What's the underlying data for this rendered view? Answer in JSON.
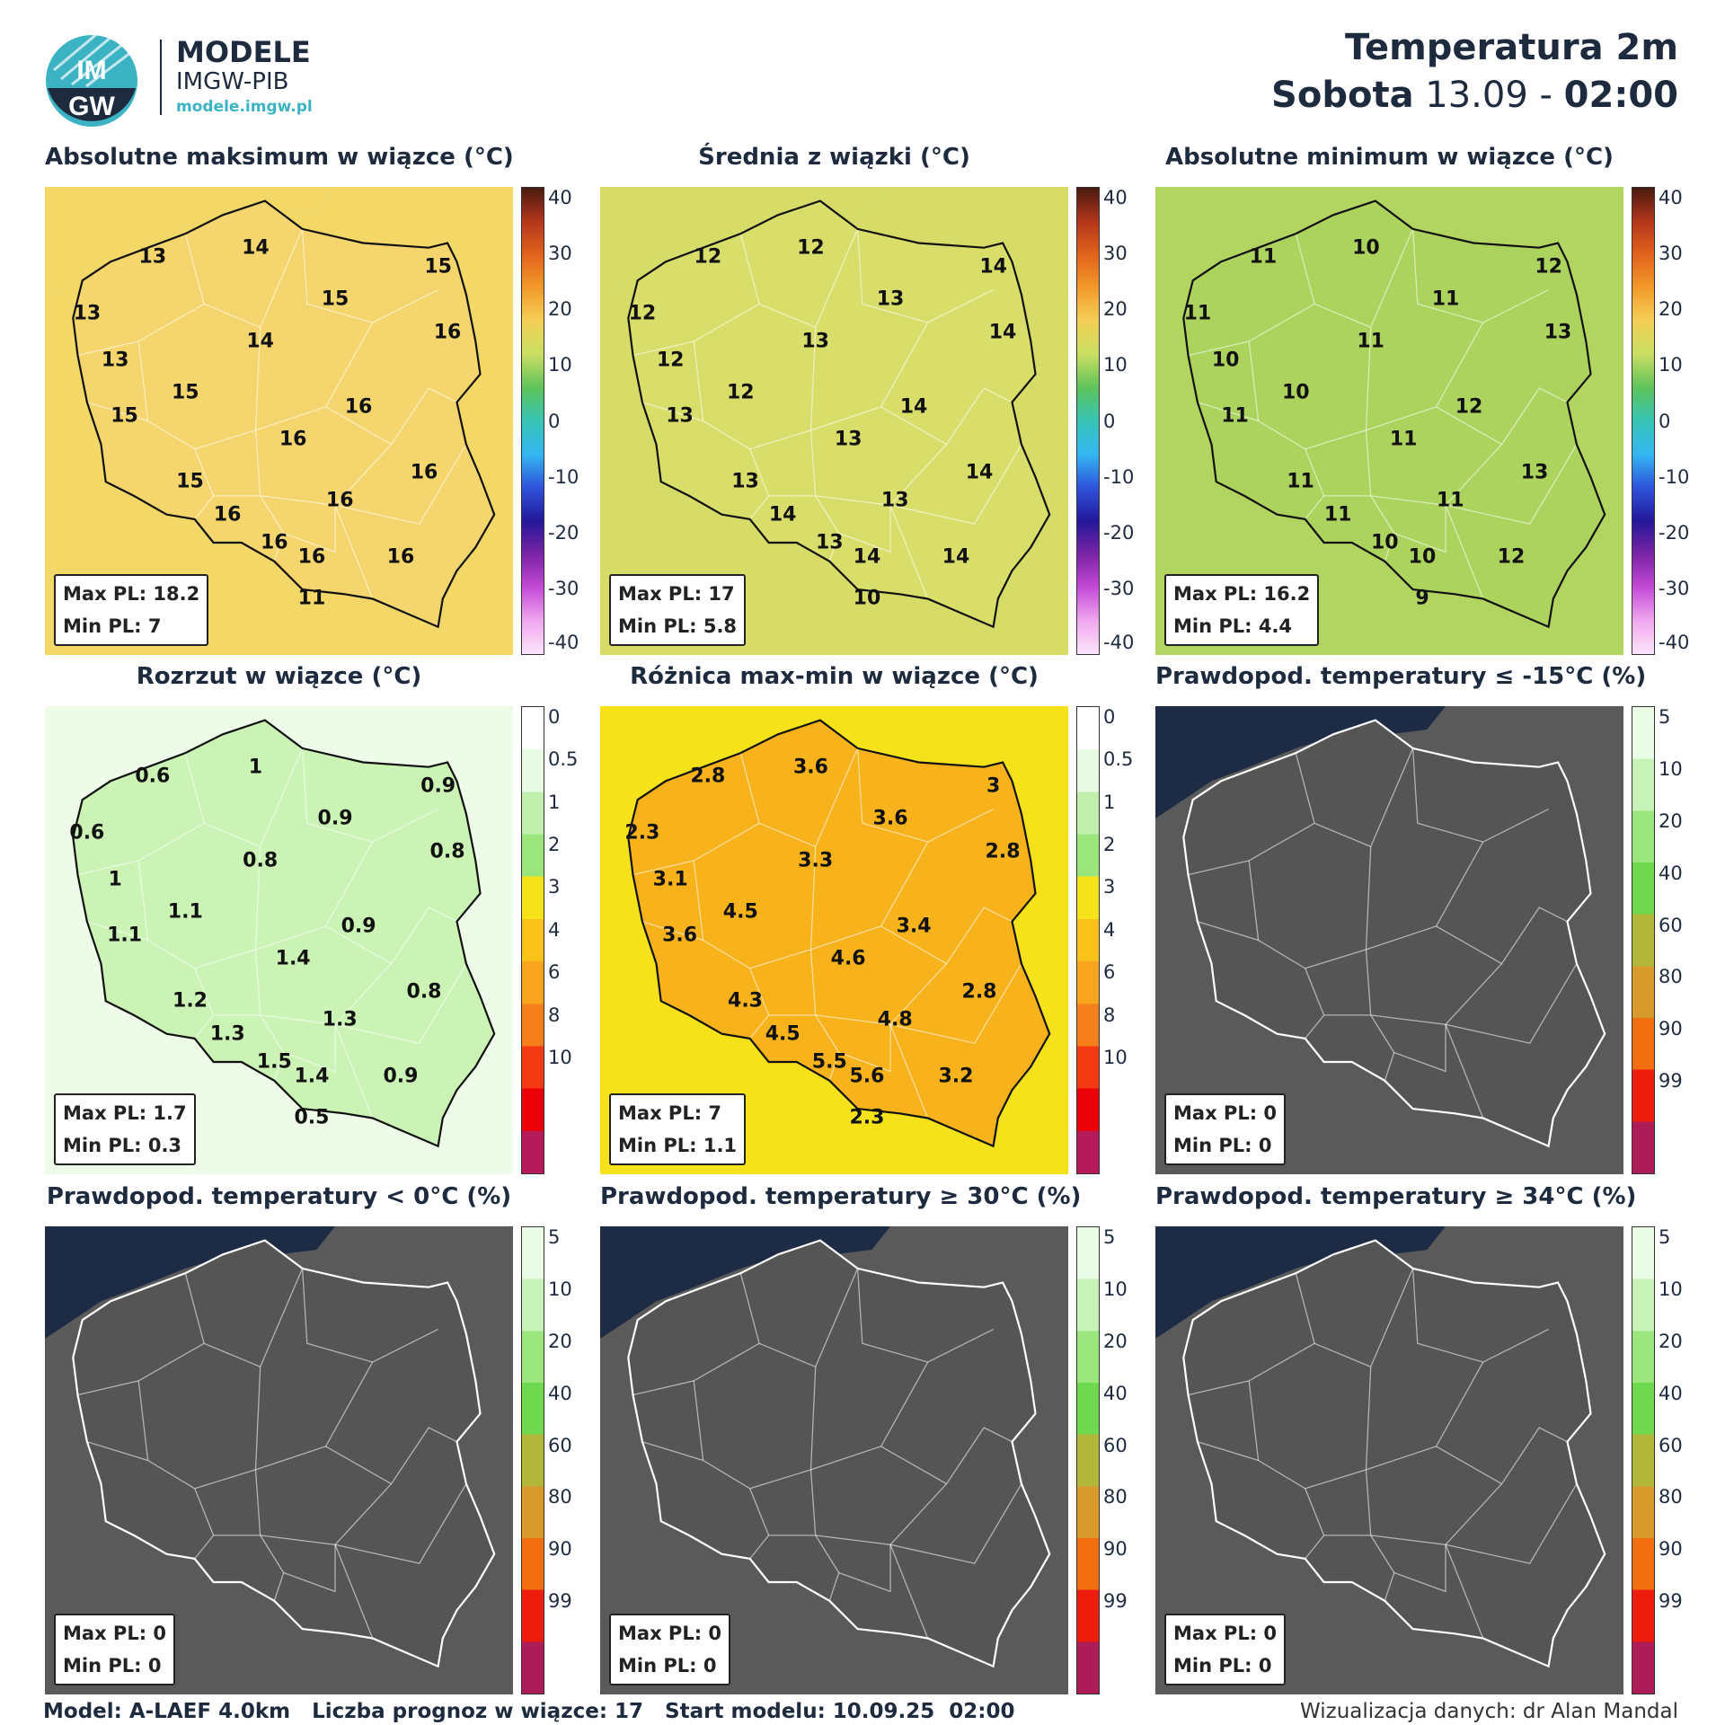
{
  "header": {
    "brand_top": "MODELE",
    "brand_mid": "IMGW-PIB",
    "brand_url": "modele.imgw.pl",
    "logo_text_top": "IM",
    "logo_text_bottom": "GW",
    "title": "Temperatura 2m",
    "day": "Sobota",
    "date": "13.09",
    "sep": "-",
    "time": "02:00"
  },
  "panels": [
    {
      "title": "Absolutne maksimum w wiązce (°C)",
      "bg": "#f3d868",
      "land": "#f6d470",
      "scale": "temp",
      "max": "Max PL: 18.2",
      "min": "Min PL: 7",
      "values": [
        {
          "t": "13",
          "x": 0.23,
          "y": 0.15
        },
        {
          "t": "14",
          "x": 0.45,
          "y": 0.13
        },
        {
          "t": "15",
          "x": 0.84,
          "y": 0.17
        },
        {
          "t": "13",
          "x": 0.09,
          "y": 0.27
        },
        {
          "t": "15",
          "x": 0.62,
          "y": 0.24
        },
        {
          "t": "16",
          "x": 0.86,
          "y": 0.31
        },
        {
          "t": "13",
          "x": 0.15,
          "y": 0.37
        },
        {
          "t": "14",
          "x": 0.46,
          "y": 0.33
        },
        {
          "t": "15",
          "x": 0.3,
          "y": 0.44
        },
        {
          "t": "15",
          "x": 0.17,
          "y": 0.49
        },
        {
          "t": "16",
          "x": 0.67,
          "y": 0.47
        },
        {
          "t": "16",
          "x": 0.53,
          "y": 0.54
        },
        {
          "t": "15",
          "x": 0.31,
          "y": 0.63
        },
        {
          "t": "16",
          "x": 0.81,
          "y": 0.61
        },
        {
          "t": "16",
          "x": 0.63,
          "y": 0.67
        },
        {
          "t": "16",
          "x": 0.39,
          "y": 0.7
        },
        {
          "t": "16",
          "x": 0.49,
          "y": 0.76
        },
        {
          "t": "16",
          "x": 0.57,
          "y": 0.79
        },
        {
          "t": "16",
          "x": 0.76,
          "y": 0.79
        },
        {
          "t": "11",
          "x": 0.57,
          "y": 0.88
        }
      ]
    },
    {
      "title": "Średnia z wiązki (°C)",
      "bg": "#d7dc69",
      "land": "#d9df6c",
      "scale": "temp",
      "max": "Max PL: 17",
      "min": "Min PL: 5.8",
      "values": [
        {
          "t": "12",
          "x": 0.23,
          "y": 0.15
        },
        {
          "t": "12",
          "x": 0.45,
          "y": 0.13
        },
        {
          "t": "14",
          "x": 0.84,
          "y": 0.17
        },
        {
          "t": "12",
          "x": 0.09,
          "y": 0.27
        },
        {
          "t": "13",
          "x": 0.62,
          "y": 0.24
        },
        {
          "t": "14",
          "x": 0.86,
          "y": 0.31
        },
        {
          "t": "12",
          "x": 0.15,
          "y": 0.37
        },
        {
          "t": "13",
          "x": 0.46,
          "y": 0.33
        },
        {
          "t": "12",
          "x": 0.3,
          "y": 0.44
        },
        {
          "t": "13",
          "x": 0.17,
          "y": 0.49
        },
        {
          "t": "14",
          "x": 0.67,
          "y": 0.47
        },
        {
          "t": "13",
          "x": 0.53,
          "y": 0.54
        },
        {
          "t": "13",
          "x": 0.31,
          "y": 0.63
        },
        {
          "t": "14",
          "x": 0.81,
          "y": 0.61
        },
        {
          "t": "13",
          "x": 0.63,
          "y": 0.67
        },
        {
          "t": "14",
          "x": 0.39,
          "y": 0.7
        },
        {
          "t": "13",
          "x": 0.49,
          "y": 0.76
        },
        {
          "t": "14",
          "x": 0.57,
          "y": 0.79
        },
        {
          "t": "14",
          "x": 0.76,
          "y": 0.79
        },
        {
          "t": "10",
          "x": 0.57,
          "y": 0.88
        }
      ]
    },
    {
      "title": "Absolutne minimum w wiązce (°C)",
      "bg": "#b2d562",
      "land": "#a9d25e",
      "scale": "temp",
      "max": "Max PL: 16.2",
      "min": "Min PL: 4.4",
      "values": [
        {
          "t": "11",
          "x": 0.23,
          "y": 0.15
        },
        {
          "t": "10",
          "x": 0.45,
          "y": 0.13
        },
        {
          "t": "12",
          "x": 0.84,
          "y": 0.17
        },
        {
          "t": "11",
          "x": 0.09,
          "y": 0.27
        },
        {
          "t": "11",
          "x": 0.62,
          "y": 0.24
        },
        {
          "t": "13",
          "x": 0.86,
          "y": 0.31
        },
        {
          "t": "10",
          "x": 0.15,
          "y": 0.37
        },
        {
          "t": "11",
          "x": 0.46,
          "y": 0.33
        },
        {
          "t": "10",
          "x": 0.3,
          "y": 0.44
        },
        {
          "t": "11",
          "x": 0.17,
          "y": 0.49
        },
        {
          "t": "12",
          "x": 0.67,
          "y": 0.47
        },
        {
          "t": "11",
          "x": 0.53,
          "y": 0.54
        },
        {
          "t": "11",
          "x": 0.31,
          "y": 0.63
        },
        {
          "t": "13",
          "x": 0.81,
          "y": 0.61
        },
        {
          "t": "11",
          "x": 0.63,
          "y": 0.67
        },
        {
          "t": "11",
          "x": 0.39,
          "y": 0.7
        },
        {
          "t": "10",
          "x": 0.49,
          "y": 0.76
        },
        {
          "t": "10",
          "x": 0.57,
          "y": 0.79
        },
        {
          "t": "12",
          "x": 0.76,
          "y": 0.79
        },
        {
          "t": "9",
          "x": 0.57,
          "y": 0.88
        }
      ]
    },
    {
      "title": "Rozrzut w wiązce (°C)",
      "bg": "#eefbe8",
      "land": "#bff0a4",
      "scale": "spread",
      "max": "Max PL: 1.7",
      "min": "Min PL: 0.3",
      "values": [
        {
          "t": "0.6",
          "x": 0.23,
          "y": 0.15
        },
        {
          "t": "1",
          "x": 0.45,
          "y": 0.13
        },
        {
          "t": "0.9",
          "x": 0.84,
          "y": 0.17
        },
        {
          "t": "0.6",
          "x": 0.09,
          "y": 0.27
        },
        {
          "t": "0.9",
          "x": 0.62,
          "y": 0.24
        },
        {
          "t": "0.8",
          "x": 0.86,
          "y": 0.31
        },
        {
          "t": "1",
          "x": 0.15,
          "y": 0.37
        },
        {
          "t": "0.8",
          "x": 0.46,
          "y": 0.33
        },
        {
          "t": "1.1",
          "x": 0.3,
          "y": 0.44
        },
        {
          "t": "1.1",
          "x": 0.17,
          "y": 0.49
        },
        {
          "t": "0.9",
          "x": 0.67,
          "y": 0.47
        },
        {
          "t": "1.4",
          "x": 0.53,
          "y": 0.54
        },
        {
          "t": "1.2",
          "x": 0.31,
          "y": 0.63
        },
        {
          "t": "0.8",
          "x": 0.81,
          "y": 0.61
        },
        {
          "t": "1.3",
          "x": 0.63,
          "y": 0.67
        },
        {
          "t": "1.3",
          "x": 0.39,
          "y": 0.7
        },
        {
          "t": "1.5",
          "x": 0.49,
          "y": 0.76
        },
        {
          "t": "1.4",
          "x": 0.57,
          "y": 0.79
        },
        {
          "t": "0.9",
          "x": 0.76,
          "y": 0.79
        },
        {
          "t": "0.5",
          "x": 0.57,
          "y": 0.88
        }
      ]
    },
    {
      "title": "Różnica max-min w wiązce (°C)",
      "bg": "#f6e21a",
      "land": "#f7a21e",
      "scale": "spread",
      "max": "Max PL: 7",
      "min": "Min PL: 1.1",
      "values": [
        {
          "t": "2.8",
          "x": 0.23,
          "y": 0.15
        },
        {
          "t": "3.6",
          "x": 0.45,
          "y": 0.13
        },
        {
          "t": "3",
          "x": 0.84,
          "y": 0.17
        },
        {
          "t": "2.3",
          "x": 0.09,
          "y": 0.27
        },
        {
          "t": "3.6",
          "x": 0.62,
          "y": 0.24
        },
        {
          "t": "2.8",
          "x": 0.86,
          "y": 0.31
        },
        {
          "t": "3.1",
          "x": 0.15,
          "y": 0.37
        },
        {
          "t": "3.3",
          "x": 0.46,
          "y": 0.33
        },
        {
          "t": "4.5",
          "x": 0.3,
          "y": 0.44
        },
        {
          "t": "3.6",
          "x": 0.17,
          "y": 0.49
        },
        {
          "t": "3.4",
          "x": 0.67,
          "y": 0.47
        },
        {
          "t": "4.6",
          "x": 0.53,
          "y": 0.54
        },
        {
          "t": "4.3",
          "x": 0.31,
          "y": 0.63
        },
        {
          "t": "2.8",
          "x": 0.81,
          "y": 0.61
        },
        {
          "t": "4.8",
          "x": 0.63,
          "y": 0.67
        },
        {
          "t": "4.5",
          "x": 0.39,
          "y": 0.7
        },
        {
          "t": "5.5",
          "x": 0.49,
          "y": 0.76
        },
        {
          "t": "5.6",
          "x": 0.57,
          "y": 0.79
        },
        {
          "t": "3.2",
          "x": 0.76,
          "y": 0.79
        },
        {
          "t": "2.3",
          "x": 0.57,
          "y": 0.88
        }
      ]
    },
    {
      "title": "Prawdopod. temperatury ≤ -15°C (%)",
      "bg": "#5a5a5a",
      "land": "#555555",
      "scale": "prob",
      "max": "Max PL: 0",
      "min": "Min PL: 0",
      "values": []
    },
    {
      "title": "Prawdopod. temperatury < 0°C (%)",
      "bg": "#5a5a5a",
      "land": "#555555",
      "scale": "prob",
      "max": "Max PL: 0",
      "min": "Min PL: 0",
      "values": []
    },
    {
      "title": "Prawdopod. temperatury ≥ 30°C (%)",
      "bg": "#5a5a5a",
      "land": "#555555",
      "scale": "prob",
      "max": "Max PL: 0",
      "min": "Min PL: 0",
      "values": []
    },
    {
      "title": "Prawdopod. temperatury ≥ 34°C (%)",
      "bg": "#5a5a5a",
      "land": "#555555",
      "scale": "prob",
      "max": "Max PL: 0",
      "min": "Min PL: 0",
      "values": []
    }
  ],
  "scales": {
    "temp": {
      "labels": [
        "40",
        "30",
        "20",
        "10",
        "0",
        "-10",
        "-20",
        "-30",
        "-40"
      ],
      "colors": [
        "#4a1a10",
        "#b3361c",
        "#e2621c",
        "#f29a2a",
        "#f4cf56",
        "#c9de63",
        "#5ec35a",
        "#38c4b6",
        "#34b6f2",
        "#2f54dc",
        "#23189a",
        "#7a23a5",
        "#c54ad6",
        "#f0a8ef",
        "#fde4fb"
      ]
    },
    "spread": {
      "labels": [
        "0",
        "0.5",
        "1",
        "2",
        "3",
        "4",
        "6",
        "8",
        "10"
      ],
      "colors": [
        "#ffffff",
        "#e8f9e4",
        "#c2f0ac",
        "#9be67c",
        "#f6e21a",
        "#f8c21b",
        "#f9a51f",
        "#f57f1c",
        "#f43a12",
        "#e90008",
        "#b51a5a"
      ]
    },
    "prob": {
      "labels": [
        "5",
        "10",
        "20",
        "40",
        "60",
        "80",
        "90",
        "99"
      ],
      "colors": [
        "#eafbe6",
        "#c8f3b8",
        "#9be67c",
        "#6fd94f",
        "#b0b739",
        "#d89a2a",
        "#f26e10",
        "#ee1c0c",
        "#ac1d58"
      ]
    }
  },
  "colors": {
    "sea_dark": "#1d2b45",
    "border_white": "#ffffff",
    "border_black": "#111111",
    "brand_teal": "#3bb3c3",
    "text_dark": "#1e2b3f"
  },
  "footer": {
    "left": "Model: A-LAEF 4.0km   Liczba prognoz w wiązce: 17   Start modelu: 10.09.25  02:00",
    "right": "Wizualizacja danych: dr Alan Mandal"
  }
}
